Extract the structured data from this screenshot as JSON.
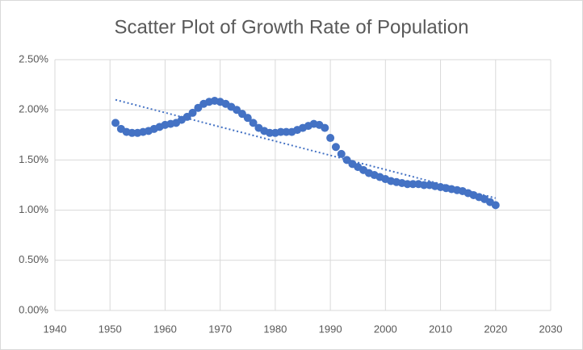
{
  "chart_data": {
    "type": "scatter",
    "title": "Scatter Plot of Growth Rate of Population",
    "x": [
      1951,
      1952,
      1953,
      1954,
      1955,
      1956,
      1957,
      1958,
      1959,
      1960,
      1961,
      1962,
      1963,
      1964,
      1965,
      1966,
      1967,
      1968,
      1969,
      1970,
      1971,
      1972,
      1973,
      1974,
      1975,
      1976,
      1977,
      1978,
      1979,
      1980,
      1981,
      1982,
      1983,
      1984,
      1985,
      1986,
      1987,
      1988,
      1989,
      1990,
      1991,
      1992,
      1993,
      1994,
      1995,
      1996,
      1997,
      1998,
      1999,
      2000,
      2001,
      2002,
      2003,
      2004,
      2005,
      2006,
      2007,
      2008,
      2009,
      2010,
      2011,
      2012,
      2013,
      2014,
      2015,
      2016,
      2017,
      2018,
      2019,
      2020
    ],
    "values": [
      1.87,
      1.81,
      1.78,
      1.77,
      1.77,
      1.78,
      1.79,
      1.81,
      1.83,
      1.85,
      1.86,
      1.87,
      1.9,
      1.93,
      1.97,
      2.02,
      2.06,
      2.08,
      2.09,
      2.08,
      2.06,
      2.03,
      2.0,
      1.96,
      1.92,
      1.87,
      1.82,
      1.79,
      1.77,
      1.77,
      1.78,
      1.78,
      1.78,
      1.8,
      1.82,
      1.84,
      1.86,
      1.85,
      1.82,
      1.72,
      1.63,
      1.56,
      1.5,
      1.46,
      1.43,
      1.4,
      1.37,
      1.35,
      1.33,
      1.31,
      1.29,
      1.28,
      1.27,
      1.26,
      1.26,
      1.26,
      1.25,
      1.25,
      1.24,
      1.23,
      1.22,
      1.21,
      1.2,
      1.19,
      1.17,
      1.15,
      1.13,
      1.11,
      1.08,
      1.05
    ],
    "color": "#4472c4",
    "trendline": {
      "x": [
        1951,
        2020
      ],
      "values": [
        2.1,
        1.12
      ]
    },
    "xlim": [
      1940,
      2030
    ],
    "xticks": [
      1940,
      1950,
      1960,
      1970,
      1980,
      1990,
      2000,
      2010,
      2020,
      2030
    ],
    "ylim": [
      0,
      2.5
    ],
    "yticks": [
      {
        "value": 0,
        "label": "0.00%"
      },
      {
        "value": 0.5,
        "label": "0.50%"
      },
      {
        "value": 1,
        "label": "1.00%"
      },
      {
        "value": 1.5,
        "label": "1.50%"
      },
      {
        "value": 2,
        "label": "2.00%"
      },
      {
        "value": 2.5,
        "label": "2.50%"
      }
    ],
    "grid": true
  }
}
